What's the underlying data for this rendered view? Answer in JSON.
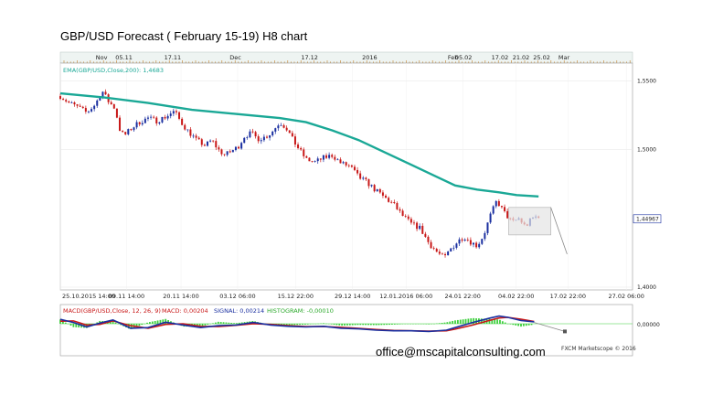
{
  "title": "GBP/USD Forecast ( February 15-19) H8 chart",
  "contact": "office@mscapitalconsulting.com",
  "credit": "FXCM Marketscope © 2016",
  "colors": {
    "ema": "#1aa896",
    "bull": "#1a2fa0",
    "bear": "#c81818",
    "macd": "#1a2fa0",
    "signal": "#c81818",
    "histogram": "#3ecf3e",
    "forecast": "#888888",
    "price_tag": "#1a2fa0",
    "top_bar": "#eef4f2"
  },
  "chart_data": [
    {
      "type": "candlestick",
      "legend": "EMA(GBP/USD,Close,200): 1,4683",
      "top_labels": [
        "Nov",
        "05.11",
        "17.11",
        "Dec",
        "17.12",
        "2016",
        "Feb",
        "05.02",
        "17.02",
        "21.02",
        "25.02",
        "Mar"
      ],
      "top_label_positions": [
        0.094,
        0.145,
        0.256,
        0.399,
        0.568,
        0.705,
        0.895,
        0.919,
        1.002,
        1.05,
        1.097,
        1.148
      ],
      "xticklabels": [
        "25.10.2015 14:00",
        "09.11 14:00",
        "20.11 14:00",
        "03.12 06:00",
        "15.12 22:00",
        "29.12 14:00",
        "12.01.2016 06:00",
        "24.01 22:00",
        "04.02 22:00",
        "17.02 22:00",
        "27.02 06:00"
      ],
      "xtick_positions": [
        0.0,
        0.151,
        0.275,
        0.404,
        0.536,
        0.666,
        0.788,
        0.917,
        1.039,
        1.157,
        1.29
      ],
      "yticklabels": [
        "1,5500",
        "1,5000",
        "1,4000"
      ],
      "ytick_values": [
        1.55,
        1.5,
        1.4
      ],
      "ylim": [
        1.398,
        1.563
      ],
      "current_price": "1,44967",
      "current_value": 1.4497,
      "price_path": [
        [
          0.0,
          1.539
        ],
        [
          0.02,
          1.534
        ],
        [
          0.04,
          1.531
        ],
        [
          0.06,
          1.527
        ],
        [
          0.08,
          1.533
        ],
        [
          0.095,
          1.543
        ],
        [
          0.11,
          1.535
        ],
        [
          0.125,
          1.53
        ],
        [
          0.135,
          1.515
        ],
        [
          0.145,
          1.51
        ],
        [
          0.16,
          1.515
        ],
        [
          0.18,
          1.52
        ],
        [
          0.2,
          1.523
        ],
        [
          0.22,
          1.521
        ],
        [
          0.24,
          1.524
        ],
        [
          0.26,
          1.528
        ],
        [
          0.275,
          1.52
        ],
        [
          0.29,
          1.514
        ],
        [
          0.31,
          1.507
        ],
        [
          0.33,
          1.503
        ],
        [
          0.345,
          1.507
        ],
        [
          0.36,
          1.5
        ],
        [
          0.375,
          1.496
        ],
        [
          0.39,
          1.499
        ],
        [
          0.405,
          1.502
        ],
        [
          0.42,
          1.51
        ],
        [
          0.435,
          1.512
        ],
        [
          0.45,
          1.508
        ],
        [
          0.465,
          1.509
        ],
        [
          0.48,
          1.512
        ],
        [
          0.5,
          1.52
        ],
        [
          0.515,
          1.516
        ],
        [
          0.53,
          1.507
        ],
        [
          0.545,
          1.5
        ],
        [
          0.56,
          1.493
        ],
        [
          0.58,
          1.491
        ],
        [
          0.6,
          1.494
        ],
        [
          0.62,
          1.496
        ],
        [
          0.64,
          1.49
        ],
        [
          0.66,
          1.488
        ],
        [
          0.68,
          1.48
        ],
        [
          0.7,
          1.476
        ],
        [
          0.72,
          1.47
        ],
        [
          0.74,
          1.465
        ],
        [
          0.76,
          1.46
        ],
        [
          0.78,
          1.452
        ],
        [
          0.8,
          1.446
        ],
        [
          0.82,
          1.443
        ],
        [
          0.84,
          1.432
        ],
        [
          0.86,
          1.425
        ],
        [
          0.875,
          1.421
        ],
        [
          0.89,
          1.428
        ],
        [
          0.905,
          1.433
        ],
        [
          0.92,
          1.437
        ],
        [
          0.935,
          1.433
        ],
        [
          0.95,
          1.43
        ],
        [
          0.965,
          1.438
        ],
        [
          0.98,
          1.452
        ],
        [
          0.995,
          1.463
        ],
        [
          1.01,
          1.455
        ],
        [
          1.03,
          1.447
        ],
        [
          1.045,
          1.45
        ],
        [
          1.06,
          1.444
        ],
        [
          1.075,
          1.45
        ],
        [
          1.09,
          1.452
        ]
      ],
      "ema_path": [
        [
          0.0,
          1.541
        ],
        [
          0.1,
          1.538
        ],
        [
          0.2,
          1.534
        ],
        [
          0.3,
          1.529
        ],
        [
          0.4,
          1.526
        ],
        [
          0.5,
          1.523
        ],
        [
          0.56,
          1.52
        ],
        [
          0.62,
          1.514
        ],
        [
          0.68,
          1.507
        ],
        [
          0.74,
          1.498
        ],
        [
          0.8,
          1.489
        ],
        [
          0.86,
          1.48
        ],
        [
          0.9,
          1.474
        ],
        [
          0.95,
          1.471
        ],
        [
          1.0,
          1.469
        ],
        [
          1.04,
          1.467
        ],
        [
          1.09,
          1.466
        ]
      ],
      "range_box": {
        "x": [
          1.022,
          1.118
        ],
        "y": [
          1.438,
          1.458
        ]
      },
      "forecast_line": [
        [
          1.118,
          1.458
        ],
        [
          1.155,
          1.424
        ]
      ]
    },
    {
      "type": "line",
      "legend": {
        "name": "MACD(GBP/USD,Close, 12, 26, 9)",
        "macd": "MACD: 0,00204",
        "signal": "SIGNAL: 0,00214",
        "histogram": "HISTOGRAM: -0,00010"
      },
      "yticklabels": [
        "0,00000"
      ],
      "ylim": [
        -1.0,
        1.0
      ],
      "series": [
        {
          "role": "macd",
          "values": [
            [
              0.0,
              0.35
            ],
            [
              0.03,
              0.1
            ],
            [
              0.06,
              -0.25
            ],
            [
              0.09,
              0.05
            ],
            [
              0.12,
              0.3
            ],
            [
              0.16,
              -0.35
            ],
            [
              0.2,
              -0.3
            ],
            [
              0.24,
              0.12
            ],
            [
              0.28,
              -0.1
            ],
            [
              0.32,
              -0.3
            ],
            [
              0.36,
              -0.15
            ],
            [
              0.4,
              -0.1
            ],
            [
              0.44,
              0.1
            ],
            [
              0.48,
              -0.1
            ],
            [
              0.52,
              -0.2
            ],
            [
              0.56,
              -0.25
            ],
            [
              0.6,
              -0.2
            ],
            [
              0.64,
              -0.35
            ],
            [
              0.68,
              -0.4
            ],
            [
              0.72,
              -0.5
            ],
            [
              0.76,
              -0.55
            ],
            [
              0.8,
              -0.55
            ],
            [
              0.84,
              -0.6
            ],
            [
              0.88,
              -0.5
            ],
            [
              0.9,
              -0.3
            ],
            [
              0.94,
              0.1
            ],
            [
              0.98,
              0.45
            ],
            [
              1.0,
              0.6
            ],
            [
              1.02,
              0.5
            ],
            [
              1.05,
              0.25
            ],
            [
              1.08,
              0.15
            ]
          ]
        },
        {
          "role": "signal",
          "values": [
            [
              0.0,
              0.2
            ],
            [
              0.03,
              0.22
            ],
            [
              0.06,
              -0.1
            ],
            [
              0.09,
              -0.05
            ],
            [
              0.12,
              0.22
            ],
            [
              0.16,
              -0.15
            ],
            [
              0.2,
              -0.35
            ],
            [
              0.24,
              -0.05
            ],
            [
              0.28,
              0.0
            ],
            [
              0.32,
              -0.2
            ],
            [
              0.36,
              -0.22
            ],
            [
              0.4,
              -0.12
            ],
            [
              0.44,
              0.0
            ],
            [
              0.48,
              -0.05
            ],
            [
              0.52,
              -0.15
            ],
            [
              0.56,
              -0.22
            ],
            [
              0.6,
              -0.22
            ],
            [
              0.64,
              -0.28
            ],
            [
              0.68,
              -0.36
            ],
            [
              0.72,
              -0.45
            ],
            [
              0.76,
              -0.52
            ],
            [
              0.8,
              -0.55
            ],
            [
              0.84,
              -0.58
            ],
            [
              0.88,
              -0.55
            ],
            [
              0.9,
              -0.42
            ],
            [
              0.94,
              -0.1
            ],
            [
              0.98,
              0.28
            ],
            [
              1.0,
              0.45
            ],
            [
              1.02,
              0.5
            ],
            [
              1.05,
              0.35
            ],
            [
              1.08,
              0.18
            ]
          ]
        }
      ],
      "forecast_line": [
        [
          1.08,
          0.1
        ],
        [
          1.15,
          -0.6
        ]
      ]
    }
  ]
}
